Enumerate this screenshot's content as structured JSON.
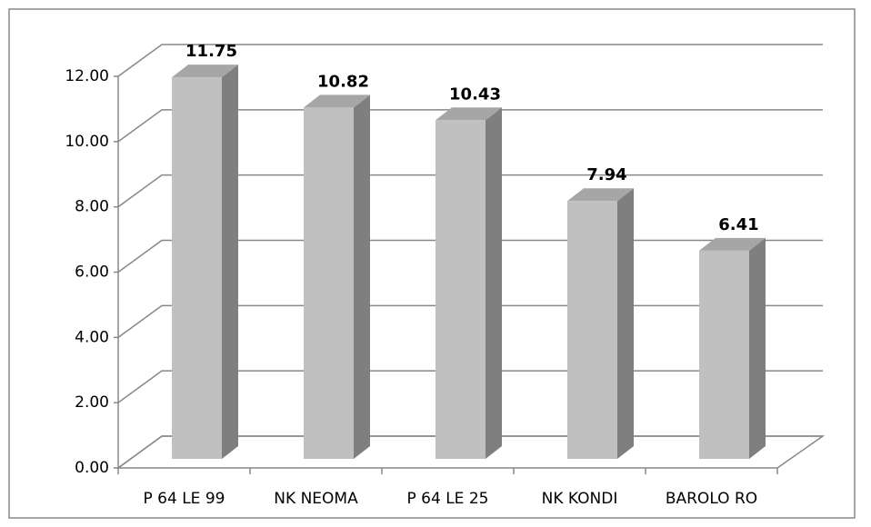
{
  "chart_data": {
    "type": "bar3d",
    "categories": [
      "P 64 LE 99",
      "NK NEOMA",
      "P 64 LE 25",
      "NK KONDI",
      "BAROLO RO"
    ],
    "values": [
      11.75,
      10.82,
      10.43,
      7.94,
      6.41
    ],
    "color": "#c0c0c0",
    "ylim": [
      0,
      12
    ],
    "yticks": [
      {
        "value": 0,
        "label": "0.00"
      },
      {
        "value": 2,
        "label": "2.00"
      },
      {
        "value": 4,
        "label": "4.00"
      },
      {
        "value": 6,
        "label": "6.00"
      },
      {
        "value": 8,
        "label": "8.00"
      },
      {
        "value": 10,
        "label": "10.00"
      },
      {
        "value": 12,
        "label": "12.00"
      }
    ],
    "grid": true
  }
}
